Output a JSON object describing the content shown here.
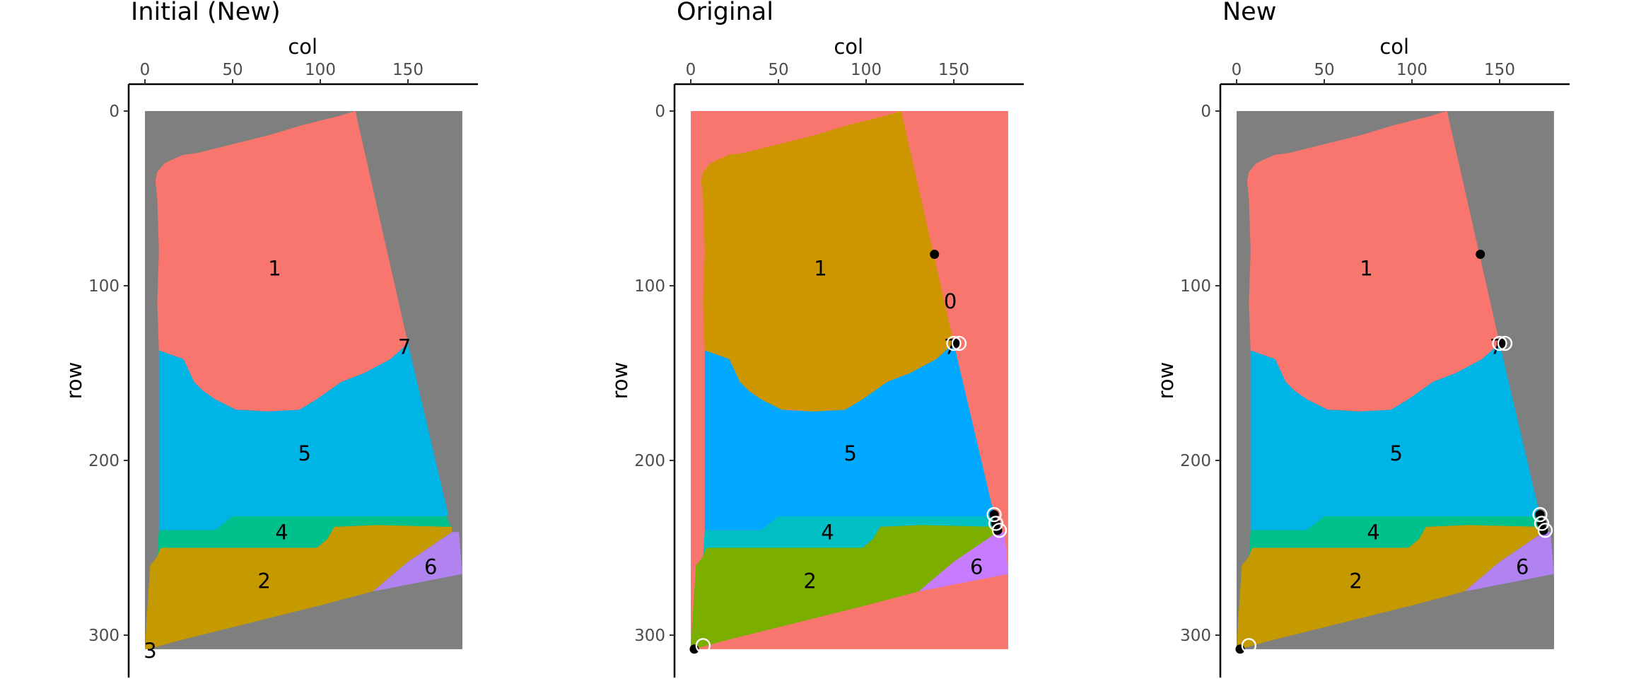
{
  "chart_data": [
    {
      "type": "heatmap",
      "title": "Initial (New)",
      "xlabel": "col",
      "ylabel": "row",
      "x_ticks": [
        0,
        50,
        100,
        150
      ],
      "y_ticks": [
        0,
        100,
        200,
        300
      ],
      "xlim": [
        -1,
        190
      ],
      "ylim": [
        -15,
        325
      ],
      "background_color": "#7f7f7f",
      "regions": [
        {
          "label": "1",
          "color": "#f8766d",
          "label_at": [
            74,
            90
          ]
        },
        {
          "label": "5",
          "color": "#00b4e6",
          "label_at": [
            91,
            196
          ]
        },
        {
          "label": "4",
          "color": "#00c08b",
          "label_at": [
            78,
            241
          ]
        },
        {
          "label": "2",
          "color": "#c49a00",
          "label_at": [
            68,
            269
          ]
        },
        {
          "label": "6",
          "color": "#b083f0",
          "label_at": [
            163,
            261
          ]
        },
        {
          "label": "7",
          "color": "#000000",
          "label_at": [
            148,
            135
          ]
        },
        {
          "label": "3",
          "color": "#000000",
          "label_at": [
            3,
            309
          ]
        }
      ],
      "points": []
    },
    {
      "type": "heatmap",
      "title": "Original",
      "xlabel": "col",
      "ylabel": "row",
      "x_ticks": [
        0,
        50,
        100,
        150
      ],
      "y_ticks": [
        0,
        100,
        200,
        300
      ],
      "xlim": [
        -1,
        190
      ],
      "ylim": [
        -15,
        325
      ],
      "background_color": "#f8766d",
      "regions": [
        {
          "label": "1",
          "color": "#cd9600",
          "label_at": [
            74,
            90
          ]
        },
        {
          "label": "5",
          "color": "#00a9ff",
          "label_at": [
            91,
            196
          ]
        },
        {
          "label": "4",
          "color": "#00bfc4",
          "label_at": [
            78,
            241
          ]
        },
        {
          "label": "2",
          "color": "#7cae00",
          "label_at": [
            68,
            269
          ]
        },
        {
          "label": "6",
          "color": "#c77cff",
          "label_at": [
            163,
            261
          ]
        },
        {
          "label": "0",
          "color": "#000000",
          "label_at": [
            148,
            109
          ]
        },
        {
          "label": "7",
          "color": "#000000",
          "label_at": [
            148,
            135
          ]
        }
      ],
      "points": [
        {
          "x": 139,
          "y": 82,
          "filled": true
        },
        {
          "x": 151,
          "y": 133,
          "filled": true
        },
        {
          "x": 173,
          "y": 231,
          "filled": true
        },
        {
          "x": 174,
          "y": 236,
          "filled": true
        },
        {
          "x": 175,
          "y": 240,
          "filled": true
        },
        {
          "x": 2,
          "y": 308,
          "filled": true
        },
        {
          "x": 150,
          "y": 133,
          "filled": false
        },
        {
          "x": 153,
          "y": 133,
          "filled": false
        },
        {
          "x": 173,
          "y": 231,
          "filled": false
        },
        {
          "x": 174,
          "y": 236,
          "filled": false
        },
        {
          "x": 176,
          "y": 240,
          "filled": false
        },
        {
          "x": 7,
          "y": 306,
          "filled": false
        }
      ]
    },
    {
      "type": "heatmap",
      "title": "New",
      "xlabel": "col",
      "ylabel": "row",
      "x_ticks": [
        0,
        50,
        100,
        150
      ],
      "y_ticks": [
        0,
        100,
        200,
        300
      ],
      "xlim": [
        -1,
        190
      ],
      "ylim": [
        -15,
        325
      ],
      "background_color": "#7f7f7f",
      "regions": [
        {
          "label": "1",
          "color": "#f8766d",
          "label_at": [
            74,
            90
          ]
        },
        {
          "label": "5",
          "color": "#00b4e6",
          "label_at": [
            91,
            196
          ]
        },
        {
          "label": "4",
          "color": "#00c08b",
          "label_at": [
            78,
            241
          ]
        },
        {
          "label": "2",
          "color": "#c49a00",
          "label_at": [
            68,
            269
          ]
        },
        {
          "label": "6",
          "color": "#b083f0",
          "label_at": [
            163,
            261
          ]
        },
        {
          "label": "7",
          "color": "#000000",
          "label_at": [
            148,
            135
          ]
        }
      ],
      "points": [
        {
          "x": 139,
          "y": 82,
          "filled": true
        },
        {
          "x": 151,
          "y": 133,
          "filled": true
        },
        {
          "x": 173,
          "y": 231,
          "filled": true
        },
        {
          "x": 174,
          "y": 236,
          "filled": true
        },
        {
          "x": 175,
          "y": 240,
          "filled": true
        },
        {
          "x": 2,
          "y": 308,
          "filled": true
        },
        {
          "x": 150,
          "y": 133,
          "filled": false
        },
        {
          "x": 153,
          "y": 133,
          "filled": false
        },
        {
          "x": 173,
          "y": 231,
          "filled": false
        },
        {
          "x": 174,
          "y": 236,
          "filled": false
        },
        {
          "x": 176,
          "y": 240,
          "filled": false
        },
        {
          "x": 7,
          "y": 306,
          "filled": false
        }
      ]
    }
  ]
}
